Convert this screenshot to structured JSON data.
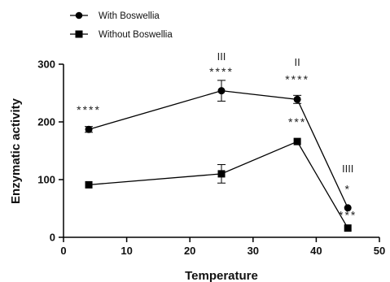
{
  "chart_data": {
    "type": "line",
    "title": "",
    "xlabel": "Temperature",
    "ylabel": "Enzymatic activity",
    "xlim": [
      0,
      50
    ],
    "ylim": [
      0,
      300
    ],
    "x_ticks": [
      "0",
      "10",
      "20",
      "30",
      "40",
      "50"
    ],
    "y_ticks": [
      "0",
      "100",
      "200",
      "300"
    ],
    "grid": false,
    "legend_position": "top-left",
    "series": [
      {
        "name": "With Boswellia",
        "marker": "circle",
        "color": "#000000",
        "x": [
          4,
          25,
          37,
          45
        ],
        "y": [
          187,
          254,
          239,
          51
        ],
        "err": [
          5,
          18,
          7,
          0
        ]
      },
      {
        "name": "Without Boswellia",
        "marker": "square",
        "color": "#000000",
        "x": [
          4,
          25,
          37,
          45
        ],
        "y": [
          91,
          110,
          166,
          16
        ],
        "err": [
          0,
          16,
          0,
          0
        ]
      }
    ],
    "annotations": [
      {
        "text": "****",
        "x": 4,
        "y": 214
      },
      {
        "text": "III",
        "x": 25,
        "y": 307
      },
      {
        "text": "****",
        "x": 25,
        "y": 280
      },
      {
        "text": "II",
        "x": 37,
        "y": 297
      },
      {
        "text": "****",
        "x": 37,
        "y": 267
      },
      {
        "text": "***",
        "x": 37,
        "y": 193
      },
      {
        "text": "IIII",
        "x": 45,
        "y": 113
      },
      {
        "text": "*",
        "x": 45,
        "y": 77
      },
      {
        "text": "***",
        "x": 45,
        "y": 32
      }
    ]
  }
}
